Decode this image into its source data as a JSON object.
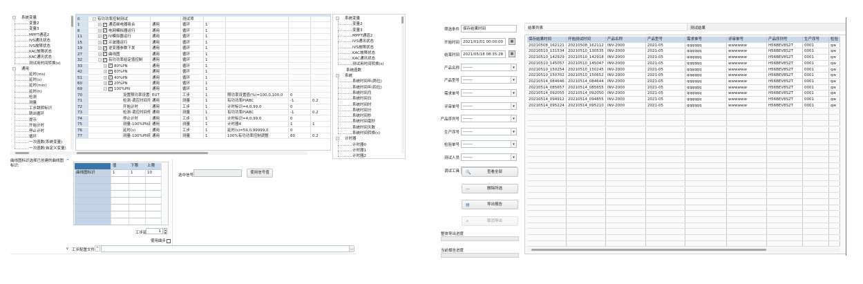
{
  "left_window": {
    "variable_tree": {
      "groups": [
        {
          "label": "系统变量",
          "children": [
            "变量2",
            "变量3",
            "MPPT通道2",
            "IVS通讯状态",
            "IVS故障状态",
            "KAC故障状态",
            "KAC通讯状态",
            "测试用时间转换(s)"
          ]
        },
        {
          "label": "通用",
          "children": [
            "延时(ms)",
            "延时(s)",
            "延时(min)",
            "延时(h)",
            "检测",
            "测量",
            "工步跳转标识",
            "跳出循环",
            "提示",
            "开始计时",
            "停止计时",
            "循环",
            "一次函数(系统变量)",
            "一次函数(自定义变量)"
          ]
        }
      ]
    },
    "step_grid": {
      "rows": [
        {
          "id": "0",
          "name": "有功功率控制测试",
          "type": "",
          "cat": "测试项",
          "num": "",
          "desc": "",
          "v1": "",
          "v2": "",
          "level": 0,
          "expand": "−",
          "check": false
        },
        {
          "id": "1",
          "name": "通道继电器吸合",
          "type": "通用",
          "cat": "循环",
          "num": "1",
          "desc": "",
          "v1": "",
          "v2": "",
          "level": 1,
          "expand": "+",
          "check": true
        },
        {
          "id": "6",
          "name": "电网模拟器运行",
          "type": "通用",
          "cat": "循环",
          "num": "1",
          "desc": "",
          "v1": "",
          "v2": "",
          "level": 1,
          "expand": "+",
          "check": true
        },
        {
          "id": "11",
          "name": "IV模拟器运行",
          "type": "通用",
          "cat": "循环",
          "num": "1",
          "desc": "",
          "v1": "",
          "v2": "",
          "level": 1,
          "expand": "+",
          "check": true
        },
        {
          "id": "15",
          "name": "示波器运行",
          "type": "通用",
          "cat": "循环",
          "num": "1",
          "desc": "",
          "v1": "",
          "v2": "",
          "level": 1,
          "expand": "+",
          "check": true
        },
        {
          "id": "19",
          "name": "逆变器参数下发",
          "type": "通用",
          "cat": "循环",
          "num": "1",
          "desc": "",
          "v1": "",
          "v2": "",
          "level": 1,
          "expand": "+",
          "check": true
        },
        {
          "id": "27",
          "name": "曲线图",
          "type": "通用",
          "cat": "循环",
          "num": "1",
          "desc": "",
          "v1": "",
          "v2": "",
          "level": 1,
          "expand": "+",
          "check": true
        },
        {
          "id": "32",
          "name": "有功功率给定值控制",
          "type": "通用",
          "cat": "循环",
          "num": "1",
          "desc": "",
          "v1": "",
          "v2": "",
          "level": 1,
          "expand": "−",
          "check": true
        },
        {
          "id": "33",
          "name": "80%PN",
          "type": "通用",
          "cat": "循环",
          "num": "1",
          "desc": "",
          "v1": "",
          "v2": "",
          "level": 2,
          "expand": "+",
          "check": true
        },
        {
          "id": "42",
          "name": "60%PN",
          "type": "通用",
          "cat": "循环",
          "num": "1",
          "desc": "",
          "v1": "",
          "v2": "",
          "level": 2,
          "expand": "+",
          "check": true
        },
        {
          "id": "51",
          "name": "40%PN",
          "type": "通用",
          "cat": "循环",
          "num": "1",
          "desc": "",
          "v1": "",
          "v2": "",
          "level": 2,
          "expand": "+",
          "check": true
        },
        {
          "id": "60",
          "name": "20%PN",
          "type": "通用",
          "cat": "循环",
          "num": "1",
          "desc": "",
          "v1": "",
          "v2": "",
          "level": 2,
          "expand": "+",
          "check": true
        },
        {
          "id": "69",
          "name": "100%PN",
          "type": "通用",
          "cat": "循环",
          "num": "1",
          "desc": "",
          "v1": "",
          "v2": "",
          "level": 2,
          "expand": "−",
          "check": true
        },
        {
          "id": "70",
          "name": "设置限功率设置值",
          "type": "EUT",
          "cat": "工步",
          "num": "1",
          "desc": "限功率设置值(%)=100,0,100,0",
          "v1": "0",
          "v2": "",
          "level": 3
        },
        {
          "id": "71",
          "name": "检测-调应时间开始判",
          "type": "通用",
          "cat": "测量",
          "num": "1",
          "desc": "有功功率PIABC",
          "v1": "-1",
          "v2": "0.2",
          "level": 3
        },
        {
          "id": "72",
          "name": "开始计时",
          "type": "通用",
          "cat": "工步",
          "num": "1",
          "desc": "计时标识=4,0,99,0",
          "v1": "0",
          "v2": "",
          "level": 3
        },
        {
          "id": "73",
          "name": "检测-调应时间停止判",
          "type": "通用",
          "cat": "测量",
          "num": "1",
          "desc": "有功功率PIABC",
          "v1": "-1",
          "v2": "0.2",
          "level": 3
        },
        {
          "id": "74",
          "name": "停止计时",
          "type": "通用",
          "cat": "工步",
          "num": "1",
          "desc": "计时标识=4,0,99,0",
          "v1": "0",
          "v2": "",
          "level": 3
        },
        {
          "id": "75",
          "name": "测量-100%PN调应时",
          "type": "通用",
          "cat": "测量",
          "num": "1",
          "desc": "计时器4",
          "v1": "1",
          "v2": "1",
          "level": 3
        },
        {
          "id": "76",
          "name": "延时(s)",
          "type": "通用",
          "cat": "工步",
          "num": "1",
          "desc": "延时(s)=59,0,99999,0",
          "v1": "0",
          "v2": "",
          "level": 3
        },
        {
          "id": "77",
          "name": "测量-100%PN有功控",
          "type": "通用",
          "cat": "测量",
          "num": "1",
          "desc": "100%有功功率控制调整",
          "v1": "60",
          "v2": "0.2",
          "level": 3
        }
      ]
    },
    "signal_tree": {
      "groups": [
        {
          "label": "系统变量",
          "children": [
            "变量2",
            "变量3",
            "MPPT通道2",
            "IVS通讯状态",
            "IVS故障状态",
            "KAC故障状态",
            "KAC通讯状态",
            "测试用时间转换(s)"
          ]
        },
        {
          "label": "系统函数",
          "children": []
        },
        {
          "label": "系统",
          "children": [
            "系统时间年(两位)",
            "系统时间年(四位)",
            "系统时间月",
            "系统时间日",
            "系统时间时",
            "系统时间分",
            "系统时间秒",
            "系统时间毫秒",
            "系统时间天数",
            "系统时间转换(s)"
          ]
        },
        {
          "label": "计时器",
          "children": [
            "计时器0",
            "计时器1",
            "计时器2"
          ]
        }
      ]
    },
    "description": "曲线图标识选择已创建的曲线图标识:",
    "param_grid": {
      "headers": [
        "",
        "值",
        "下限",
        "上限"
      ],
      "row_label": "曲线图标识",
      "values": [
        "1",
        "1",
        "10"
      ]
    },
    "step_delay_label": "工步延时(s)",
    "step_delay_value": "1",
    "use_sync_label": "使用曲步",
    "selected_signal_label": "选中信号",
    "selected_signal_value": "",
    "use_signal_button": "使用信号值",
    "config_file_label": "工步配置文件",
    "config_file_value": "",
    "browse_button": "..."
  },
  "right_window": {
    "filters": [
      {
        "label": "筛选条件",
        "value": "保存结果时间",
        "kind": "text"
      },
      {
        "label": "开始时间",
        "value": "2021/01/01 00:00:00",
        "kind": "date"
      },
      {
        "label": "结束时间",
        "value": "2021/05/18 08:35:28",
        "kind": "date"
      },
      {
        "label": "产品名称",
        "value": "-------",
        "kind": "select"
      },
      {
        "label": "产品型号",
        "value": "-------",
        "kind": "select"
      },
      {
        "label": "需求单号",
        "value": "-------",
        "kind": "select"
      },
      {
        "label": "评审单号",
        "value": "-------",
        "kind": "select"
      },
      {
        "label": "产品序列号",
        "value": "-------",
        "kind": "select"
      },
      {
        "label": "生产序号",
        "value": "-------",
        "kind": "select"
      },
      {
        "label": "检验单号",
        "value": "-------",
        "kind": "select"
      },
      {
        "label": "测试人员",
        "value": "-------",
        "kind": "select"
      },
      {
        "label": "调试工具",
        "value": "-------",
        "kind": "select"
      }
    ],
    "buttons": [
      {
        "label": "查看全部",
        "icon": "magnifier-icon",
        "enabled": true
      },
      {
        "label": "删除所选",
        "icon": "minus-icon",
        "enabled": true
      },
      {
        "label": "导出报告",
        "icon": "export-report-icon",
        "enabled": true
      },
      {
        "label": "取消导出",
        "icon": "cancel-x-icon",
        "enabled": false
      }
    ],
    "overall_progress_label": "整体导出进度",
    "overall_progress": 0,
    "current_progress_label": "当前报告进度",
    "current_progress": 0,
    "results_title": "结果列表",
    "test_results_tab": "测试结果",
    "table": {
      "headers": [
        "保存结果时间",
        "开始测试时间",
        "产品名称",
        "产品型号",
        "需求单号",
        "评审单号",
        "产品序列号",
        "生产序号",
        "检验"
      ],
      "rows": [
        [
          "20210508_162121",
          "20210508_162112",
          "INV-2000",
          "2021-05",
          "qqqqqq",
          "wwwwww",
          "H56BEV8S2T",
          "0001",
          "qw"
        ],
        [
          "20210510_131534",
          "20210510_130535",
          "INV-2000",
          "2021-05",
          "qqqqqq",
          "wwwwww",
          "H56BEV8S2T",
          "0001",
          "qw"
        ],
        [
          "20210510_142929",
          "20210510_142918",
          "INV-2000",
          "2021-05",
          "qqqqqq",
          "wwwwww",
          "H56BEV8S2T",
          "0001",
          "qw"
        ],
        [
          "20210510_145057",
          "20210510_145047",
          "INV-2000",
          "2021-05",
          "qqqqqq",
          "wwwwww",
          "H56BEV8S2T",
          "0001",
          "qw"
        ],
        [
          "20210510_150254",
          "20210510_150245",
          "INV-2000",
          "2021-05",
          "qqqqqq",
          "wwwwww",
          "H56BEV8S2T",
          "0001",
          "qw"
        ],
        [
          "20210510_150702",
          "20210510_150652",
          "INV-2000",
          "2021-05",
          "qqqqqq",
          "wwwwww",
          "H56BEV8S2T",
          "0001",
          "qw"
        ],
        [
          "20210514_084646",
          "20210514_084644",
          "INV-2000",
          "2021-05",
          "qqqqqq",
          "wwwwww",
          "H56BEV8S2T",
          "0001",
          "qw"
        ],
        [
          "20210514_085657",
          "20210514_085655",
          "INV-2000",
          "2021-05",
          "qqqqqq",
          "wwwwww",
          "H56BEV8S2T",
          "0001",
          "qw"
        ],
        [
          "20210514_092055",
          "20210514_092050",
          "INV-2000",
          "2021-05",
          "qqqqqq",
          "wwwwww",
          "H56BEV8S2T",
          "0001",
          "qw"
        ],
        [
          "20210514_094912",
          "20210514_094855",
          "INV-2000",
          "2021-05",
          "qqqqqq",
          "wwwwww",
          "H56BEV8S2T",
          "0001",
          "qw"
        ],
        [
          "20210514_095224",
          "20210514_095210",
          "INV-2000",
          "2021-05",
          "qqqqqq",
          "wwwwww",
          "H56BEV8S2T",
          "0001",
          "qw"
        ]
      ]
    }
  }
}
